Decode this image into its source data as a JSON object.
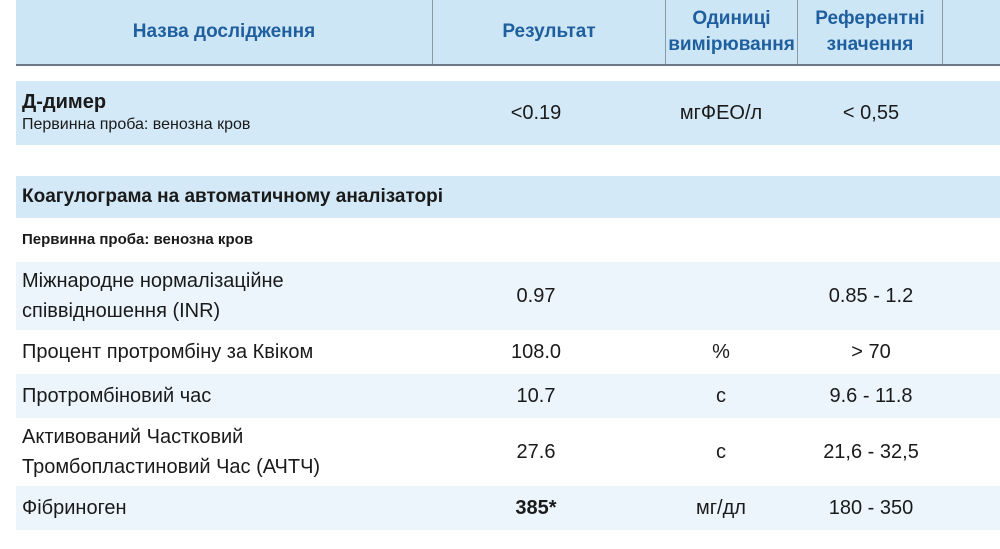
{
  "header": {
    "name": "Назва дослідження",
    "result": "Результат",
    "units": "Одиниці вимірювання",
    "reference": "Референтні значення"
  },
  "d_dimer": {
    "name": "Д-димер",
    "sample": "Первинна проба: венозна кров",
    "result": "<0.19",
    "unit": "мгФЕО/л",
    "reference": "< 0,55"
  },
  "coag": {
    "title": "Коагулограма на автоматичному аналізаторі",
    "sample": "Первинна проба: венозна кров",
    "rows": [
      {
        "name": "Міжнародне нормалізаційне співвідношення (INR)",
        "result": "0.97",
        "unit": "",
        "reference": "0.85 - 1.2"
      },
      {
        "name": "Процент протромбіну за Квіком",
        "result": "108.0",
        "unit": "%",
        "reference": "> 70"
      },
      {
        "name": "Протромбіновий час",
        "result": "10.7",
        "unit": "с",
        "reference": "9.6 - 11.8"
      },
      {
        "name": "Активований Частковий Тромбопластиновий Час (АЧТЧ)",
        "result": "27.6",
        "unit": "с",
        "reference": "21,6 - 32,5"
      },
      {
        "name": "Фібриноген",
        "result": "385*",
        "unit": "мг/дл",
        "reference": "180 - 350",
        "flagged": true
      }
    ]
  },
  "colors": {
    "header_bg": "#cde6f6",
    "header_text": "#1f5f9e",
    "row_light": "#ecf5fc"
  }
}
